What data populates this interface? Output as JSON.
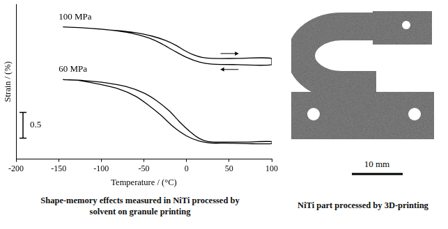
{
  "chart_data": {
    "type": "line",
    "caption": "Shape-memory effects measured in NiTi processed by solvent on granule printing",
    "x_label": "Temperature / (°C)",
    "y_label": "Strain / (%)",
    "xlim": [
      -200,
      100
    ],
    "xticks": [
      -200,
      -150,
      -100,
      -50,
      0,
      50,
      100
    ],
    "ylim": [
      0,
      3
    ],
    "tick_labels": "x",
    "grid": false,
    "scale_bar": 0.5,
    "series": [
      {
        "name": "100 MPa",
        "color": "#000000",
        "marker": "none",
        "line_style": "solid",
        "x": [
          -145,
          -120,
          -90,
          -60,
          -40,
          -25,
          -12,
          -2,
          8,
          18,
          30,
          60,
          100,
          100,
          60,
          30,
          15,
          0,
          -15,
          -30,
          -45,
          -65,
          -90,
          -120,
          -145
        ],
        "values": [
          2.56,
          2.54,
          2.5,
          2.45,
          2.38,
          2.3,
          2.2,
          2.1,
          2.02,
          1.97,
          1.95,
          1.95,
          1.95,
          1.83,
          1.83,
          1.84,
          1.88,
          1.97,
          2.1,
          2.24,
          2.35,
          2.44,
          2.5,
          2.54,
          2.56
        ]
      },
      {
        "name": "60 MPa",
        "color": "#000000",
        "marker": "none",
        "line_style": "solid",
        "x": [
          -145,
          -120,
          -95,
          -70,
          -50,
          -35,
          -20,
          -8,
          5,
          15,
          25,
          40,
          70,
          100,
          100,
          70,
          45,
          30,
          15,
          0,
          -15,
          -30,
          -45,
          -60,
          -80,
          -105,
          -125,
          -145
        ],
        "values": [
          1.54,
          1.52,
          1.48,
          1.4,
          1.28,
          1.13,
          0.93,
          0.72,
          0.52,
          0.4,
          0.34,
          0.33,
          0.33,
          0.34,
          0.3,
          0.3,
          0.31,
          0.31,
          0.35,
          0.45,
          0.62,
          0.85,
          1.05,
          1.22,
          1.36,
          1.46,
          1.52,
          1.54
        ]
      }
    ]
  },
  "photo": {
    "caption": "NiTi part processed by 3D-printing",
    "scale_bar": "10 mm"
  }
}
